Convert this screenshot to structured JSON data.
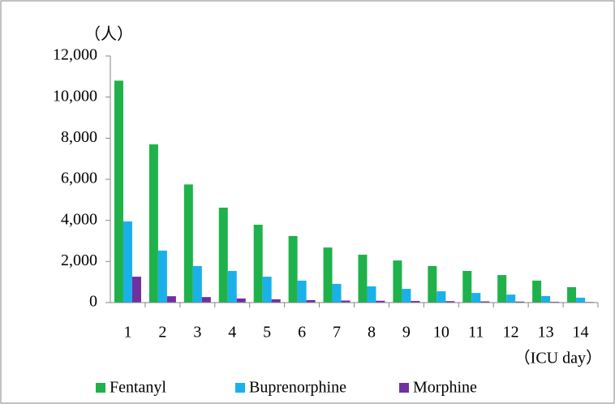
{
  "chart_data": {
    "type": "bar",
    "y_label": "（人）",
    "x_label": "（ICU day）",
    "categories": [
      "1",
      "2",
      "3",
      "4",
      "5",
      "6",
      "7",
      "8",
      "9",
      "10",
      "11",
      "12",
      "13",
      "14"
    ],
    "series": [
      {
        "name": "Fentanyl",
        "color": "#1fb24b",
        "values": [
          10800,
          7700,
          5750,
          4620,
          3790,
          3240,
          2680,
          2330,
          2050,
          1780,
          1540,
          1340,
          1070,
          750
        ]
      },
      {
        "name": "Buprenorphine",
        "color": "#1ab1ea",
        "values": [
          3950,
          2530,
          1780,
          1540,
          1260,
          1070,
          910,
          790,
          670,
          550,
          470,
          390,
          320,
          240
        ]
      },
      {
        "name": "Morphine",
        "color": "#7030a0",
        "values": [
          1260,
          310,
          270,
          200,
          160,
          120,
          100,
          90,
          80,
          70,
          60,
          50,
          40,
          30
        ]
      }
    ],
    "ylim": [
      0,
      12000
    ],
    "yticks": [
      0,
      {
        "value": 2000,
        "label": "2,000"
      },
      {
        "value": 4000,
        "label": "4,000"
      },
      {
        "value": 6000,
        "label": "6,000"
      },
      {
        "value": 8000,
        "label": "8,000"
      },
      {
        "value": 10000,
        "label": "10,000"
      },
      {
        "value": 12000,
        "label": "12,000"
      }
    ],
    "grid": false,
    "legend": "bottom"
  }
}
